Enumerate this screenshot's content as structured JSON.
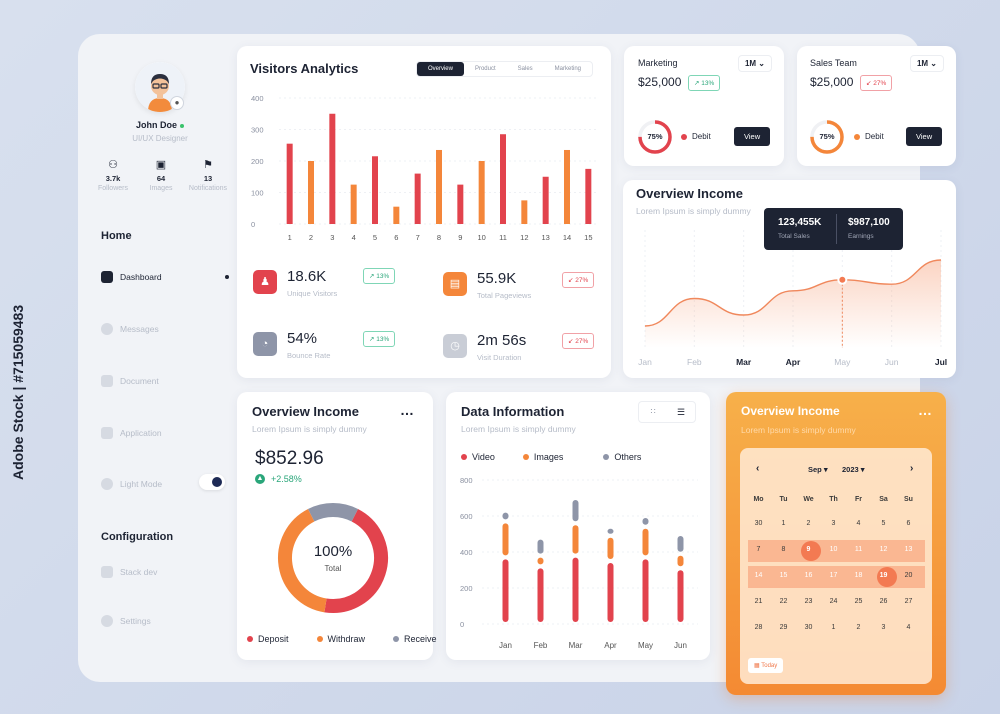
{
  "profile": {
    "name": "John Doe",
    "role": "UI/UX Designer",
    "stats": [
      {
        "value": "3.7k",
        "label": "Followers"
      },
      {
        "value": "64",
        "label": "Images"
      },
      {
        "value": "13",
        "label": "Notifications"
      }
    ]
  },
  "nav": {
    "home_section": "Home",
    "home_items": [
      "Dashboard",
      "Messages",
      "Document",
      "Application",
      "Light Mode"
    ],
    "config_section": "Configuration",
    "config_items": [
      "Stack dev",
      "Settings"
    ]
  },
  "visitors": {
    "title": "Visitors Analytics",
    "tabs": [
      "Overview",
      "Product",
      "Sales",
      "Marketing"
    ],
    "kpis": [
      {
        "value": "18.6K",
        "label": "Unique Visitors",
        "change": "13%",
        "dir": "up",
        "color": "#e2434d"
      },
      {
        "value": "55.9K",
        "label": "Total Pageviews",
        "change": "27%",
        "dir": "down",
        "color": "#f4863a"
      },
      {
        "value": "54%",
        "label": "Bounce Rate",
        "change": "13%",
        "dir": "up",
        "color": "#8e95a8"
      },
      {
        "value": "2m 56s",
        "label": "Visit Duration",
        "change": "27%",
        "dir": "down",
        "color": "#c9cdd6"
      }
    ]
  },
  "marketing": {
    "title": "Marketing",
    "period": "1M",
    "amount": "$25,000",
    "change": "13%",
    "ring": "75%",
    "legend": "Debit",
    "button": "View"
  },
  "sales_team": {
    "title": "Sales Team",
    "period": "1M",
    "amount": "$25,000",
    "change": "27%",
    "ring": "75%",
    "legend": "Debit",
    "button": "View"
  },
  "income_line": {
    "title": "Overview Income",
    "subtitle": "Lorem Ipsum is simply dummy",
    "tooltip": {
      "v1": "123,455K",
      "l1": "Total Sales",
      "v2": "$987,100",
      "l2": "Earnings"
    }
  },
  "income_donut": {
    "title": "Overview Income",
    "subtitle": "Lorem Ipsum is simply dummy",
    "amount": "$852.96",
    "change": "+2.58%",
    "center_value": "100%",
    "center_label": "Total",
    "legend": [
      "Deposit",
      "Withdraw",
      "Receive"
    ]
  },
  "data_info": {
    "title": "Data Information",
    "subtitle": "Lorem Ipsum is simply dummy",
    "legend": [
      "Video",
      "Images",
      "Others"
    ]
  },
  "calendar": {
    "title": "Overview Income",
    "subtitle": "Lorem Ipsum is simply dummy",
    "month": "Sep",
    "year": "2023",
    "weekdays": [
      "Mo",
      "Tu",
      "We",
      "Th",
      "Fr",
      "Sa",
      "Su"
    ],
    "weeks": [
      [
        "30",
        "1",
        "2",
        "3",
        "4",
        "5",
        "6"
      ],
      [
        "7",
        "8",
        "9",
        "10",
        "11",
        "12",
        "13"
      ],
      [
        "14",
        "15",
        "16",
        "17",
        "18",
        "19",
        "20"
      ],
      [
        "21",
        "22",
        "23",
        "24",
        "25",
        "26",
        "27"
      ],
      [
        "28",
        "29",
        "30",
        "1",
        "2",
        "3",
        "4"
      ]
    ],
    "today": "Today"
  },
  "colors": {
    "red": "#e2434d",
    "orange": "#f4863a",
    "slate": "#8e95a8",
    "dark": "#1d2333"
  },
  "watermark": "Adobe Stock | #715059483",
  "chart_data": [
    {
      "type": "bar",
      "title": "Visitors Analytics",
      "categories": [
        "1",
        "2",
        "3",
        "4",
        "5",
        "6",
        "7",
        "8",
        "9",
        "10",
        "11",
        "12",
        "13",
        "14",
        "15"
      ],
      "values": [
        255,
        200,
        350,
        125,
        215,
        55,
        160,
        235,
        125,
        200,
        285,
        75,
        150,
        235,
        175
      ],
      "colors": [
        "red",
        "orange",
        "red",
        "orange",
        "red",
        "orange",
        "red",
        "orange",
        "red",
        "orange",
        "red",
        "orange",
        "red",
        "orange",
        "red"
      ],
      "yticks": [
        0,
        100,
        200,
        300,
        400
      ],
      "ylim": [
        0,
        400
      ]
    },
    {
      "type": "line",
      "title": "Overview Income",
      "x": [
        "Jan",
        "Feb",
        "Mar",
        "Apr",
        "May",
        "Jun",
        "Jul"
      ],
      "values": [
        20,
        45,
        30,
        52,
        62,
        58,
        80
      ]
    },
    {
      "type": "pie",
      "title": "Overview Income",
      "series": [
        {
          "name": "Deposit",
          "value": 45
        },
        {
          "name": "Withdraw",
          "value": 40
        },
        {
          "name": "Receive",
          "value": 15
        }
      ]
    },
    {
      "type": "bar",
      "title": "Data Information",
      "categories": [
        "Jan",
        "Feb",
        "Mar",
        "Apr",
        "May",
        "Jun"
      ],
      "series": [
        {
          "name": "Video",
          "values": [
            370,
            320,
            380,
            350,
            370,
            310
          ]
        },
        {
          "name": "Images",
          "values": [
            200,
            60,
            180,
            140,
            170,
            80
          ]
        },
        {
          "name": "Others",
          "values": [
            60,
            100,
            140,
            50,
            60,
            110
          ]
        }
      ],
      "yticks": [
        0,
        200,
        400,
        600,
        800
      ],
      "ylim": [
        0,
        800
      ]
    }
  ]
}
